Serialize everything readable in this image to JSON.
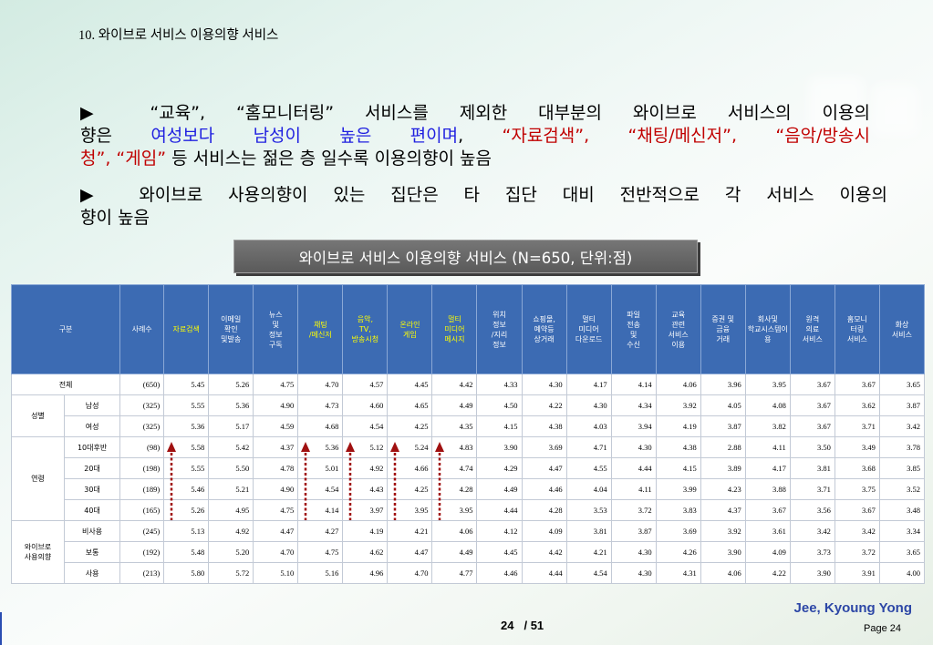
{
  "page": {
    "title": "10. 와이브로 서비스 이용의향 서비스",
    "colors": {
      "text": "#000000",
      "blue": "#1f1fe0",
      "red": "#c00000",
      "header_bg": "#3c6bb3",
      "header_text": "#ffffff",
      "highlight": "#ffff00",
      "arrow": "#a01010",
      "author": "#2d47a6"
    }
  },
  "summary": [
    {
      "lines": [
        [
          {
            "t": "▶ “교육”, “홈모니터링” 서비스를 제외한 대부분의 와이브로 서비스의 이용의",
            "c": "text"
          }
        ],
        [
          {
            "t": "향은 ",
            "c": "text"
          },
          {
            "t": "여성보다 남성이 높은 편이며",
            "c": "blue"
          },
          {
            "t": ", ",
            "c": "text"
          },
          {
            "t": "“자료검색”, “채팅/메신저”, “음악/방송시",
            "c": "red"
          }
        ],
        [
          {
            "t": "청”, “게임”",
            "c": "red"
          },
          {
            "t": " 등 서비스는 젊은 층 일수록 이용의향이 높음",
            "c": "text"
          }
        ]
      ]
    },
    {
      "lines": [
        [
          {
            "t": "▶ 와이브로 사용의향이 있는 집단은 타 집단 대비 전반적으로 각 서비스 이용의",
            "c": "text"
          }
        ],
        [
          {
            "t": "향이 높음",
            "c": "text"
          }
        ]
      ]
    }
  ],
  "table": {
    "caption": "와이브로 서비스 이용의향 서비스 (N=650, 단위:점)",
    "header": {
      "group_label": "구분",
      "count_label": "사례수",
      "services": [
        {
          "lines": [
            "자료검색"
          ],
          "highlight": true
        },
        {
          "lines": [
            "이메일",
            "확인",
            "및발송"
          ],
          "highlight": false
        },
        {
          "lines": [
            "뉴스",
            "및",
            "정보",
            "구독"
          ],
          "highlight": false
        },
        {
          "lines": [
            "채팅",
            "/메신저"
          ],
          "highlight": true
        },
        {
          "lines": [
            "음악,",
            "TV,",
            "방송시청"
          ],
          "highlight": true
        },
        {
          "lines": [
            "온라인",
            "게임"
          ],
          "highlight": true
        },
        {
          "lines": [
            "멀티",
            "미디어",
            "메시지"
          ],
          "highlight": true
        },
        {
          "lines": [
            "위치",
            "정보",
            "/지리",
            "정보"
          ],
          "highlight": false
        },
        {
          "lines": [
            "쇼핑몰,",
            "예약등",
            "상거래"
          ],
          "highlight": false
        },
        {
          "lines": [
            "멀티",
            "미디어",
            "다운로드"
          ],
          "highlight": false
        },
        {
          "lines": [
            "파일",
            "전송",
            "및",
            "수신"
          ],
          "highlight": false
        },
        {
          "lines": [
            "교육",
            "관련",
            "서비스",
            "이용"
          ],
          "highlight": false
        },
        {
          "lines": [
            "증권 및",
            "금융",
            "거래"
          ],
          "highlight": false
        },
        {
          "lines": [
            "회사및",
            "학교시스템이",
            "용"
          ],
          "highlight": false
        },
        {
          "lines": [
            "원격",
            "의료",
            "서비스"
          ],
          "highlight": false
        },
        {
          "lines": [
            "홈모니",
            "터링",
            "서비스"
          ],
          "highlight": false
        },
        {
          "lines": [
            "화상",
            "서비스"
          ],
          "highlight": false
        }
      ]
    },
    "total": {
      "label": "전체",
      "n": "(650)",
      "values": [
        "5.45",
        "5.26",
        "4.75",
        "4.70",
        "4.57",
        "4.45",
        "4.42",
        "4.33",
        "4.30",
        "4.17",
        "4.14",
        "4.06",
        "3.96",
        "3.95",
        "3.67",
        "3.67",
        "3.65"
      ]
    },
    "groups": [
      {
        "label": [
          "성별"
        ],
        "trend_arrow_columns": [],
        "rows": [
          {
            "label": "남성",
            "n": "(325)",
            "values": [
              "5.55",
              "5.36",
              "4.90",
              "4.73",
              "4.60",
              "4.65",
              "4.49",
              "4.50",
              "4.22",
              "4.30",
              "4.34",
              "3.92",
              "4.05",
              "4.08",
              "3.67",
              "3.62",
              "3.87"
            ]
          },
          {
            "label": "여성",
            "n": "(325)",
            "values": [
              "5.36",
              "5.17",
              "4.59",
              "4.68",
              "4.54",
              "4.25",
              "4.35",
              "4.15",
              "4.38",
              "4.03",
              "3.94",
              "4.19",
              "3.87",
              "3.82",
              "3.67",
              "3.71",
              "3.42"
            ]
          }
        ]
      },
      {
        "label": [
          "연령"
        ],
        "trend_arrow_columns": [
          0,
          3,
          4,
          5,
          6
        ],
        "rows": [
          {
            "label": "10대후반",
            "n": "(98)",
            "values": [
              "5.58",
              "5.42",
              "4.37",
              "5.36",
              "5.12",
              "5.24",
              "4.83",
              "3.90",
              "3.69",
              "4.71",
              "4.30",
              "4.38",
              "2.88",
              "4.11",
              "3.50",
              "3.49",
              "3.78"
            ]
          },
          {
            "label": "20대",
            "n": "(198)",
            "values": [
              "5.55",
              "5.50",
              "4.78",
              "5.01",
              "4.92",
              "4.66",
              "4.74",
              "4.29",
              "4.47",
              "4.55",
              "4.44",
              "4.15",
              "3.89",
              "4.17",
              "3.81",
              "3.68",
              "3.85"
            ]
          },
          {
            "label": "30대",
            "n": "(189)",
            "values": [
              "5.46",
              "5.21",
              "4.90",
              "4.54",
              "4.43",
              "4.25",
              "4.28",
              "4.49",
              "4.46",
              "4.04",
              "4.11",
              "3.99",
              "4.23",
              "3.88",
              "3.71",
              "3.75",
              "3.52"
            ]
          },
          {
            "label": "40대",
            "n": "(165)",
            "values": [
              "5.26",
              "4.95",
              "4.75",
              "4.14",
              "3.97",
              "3.95",
              "3.95",
              "4.44",
              "4.28",
              "3.53",
              "3.72",
              "3.83",
              "4.37",
              "3.67",
              "3.56",
              "3.67",
              "3.48"
            ]
          }
        ]
      },
      {
        "label": [
          "와이브로",
          "사용의향"
        ],
        "trend_arrow_columns": [],
        "rows": [
          {
            "label": "비사용",
            "n": "(245)",
            "values": [
              "5.13",
              "4.92",
              "4.47",
              "4.27",
              "4.19",
              "4.21",
              "4.06",
              "4.12",
              "4.09",
              "3.81",
              "3.87",
              "3.69",
              "3.92",
              "3.61",
              "3.42",
              "3.42",
              "3.34"
            ]
          },
          {
            "label": "보통",
            "n": "(192)",
            "values": [
              "5.48",
              "5.20",
              "4.70",
              "4.75",
              "4.62",
              "4.47",
              "4.49",
              "4.45",
              "4.42",
              "4.21",
              "4.30",
              "4.26",
              "3.90",
              "4.09",
              "3.73",
              "3.72",
              "3.65"
            ]
          },
          {
            "label": "사용",
            "n": "(213)",
            "values": [
              "5.80",
              "5.72",
              "5.10",
              "5.16",
              "4.96",
              "4.70",
              "4.77",
              "4.46",
              "4.44",
              "4.54",
              "4.30",
              "4.31",
              "4.06",
              "4.22",
              "3.90",
              "3.91",
              "4.00"
            ]
          }
        ]
      }
    ]
  },
  "footer": {
    "page_current": "24",
    "page_total": "/ 51",
    "author": "Jee, Kyoung Yong",
    "page_label": "Page 24"
  }
}
